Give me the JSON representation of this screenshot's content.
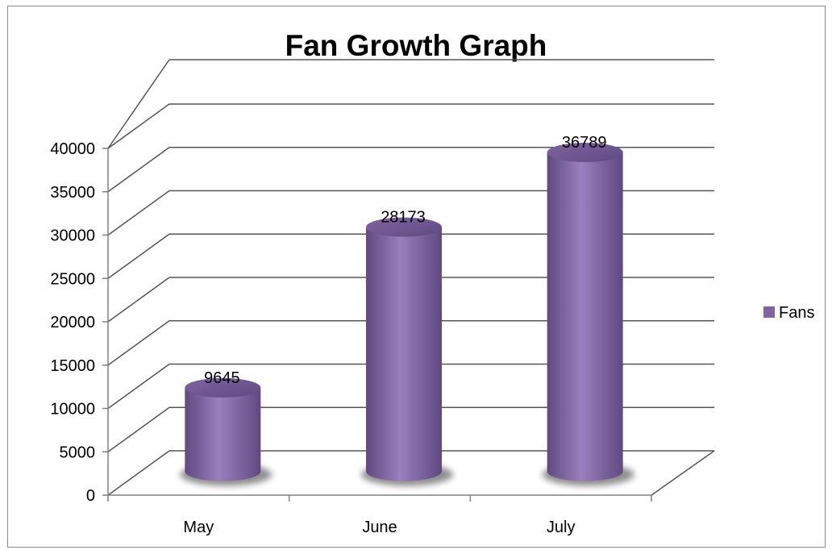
{
  "chart_data": {
    "type": "bar",
    "style": "3d-cylinder",
    "title": "Fan Growth Graph",
    "xlabel": "",
    "ylabel": "",
    "categories": [
      "May",
      "June",
      "July"
    ],
    "series": [
      {
        "name": "Fans",
        "values": [
          9645,
          28173,
          36789
        ]
      }
    ],
    "ylim": [
      0,
      40000
    ],
    "yticks": [
      0,
      5000,
      10000,
      15000,
      20000,
      25000,
      30000,
      35000,
      40000
    ],
    "grid": true,
    "legend": "right",
    "data_labels": true,
    "colors": {
      "bar": "#8064a2",
      "bar_dark": "#5f4a80",
      "bar_light": "#9a80bc",
      "gridline": "#555555",
      "axis": "#808080"
    }
  }
}
